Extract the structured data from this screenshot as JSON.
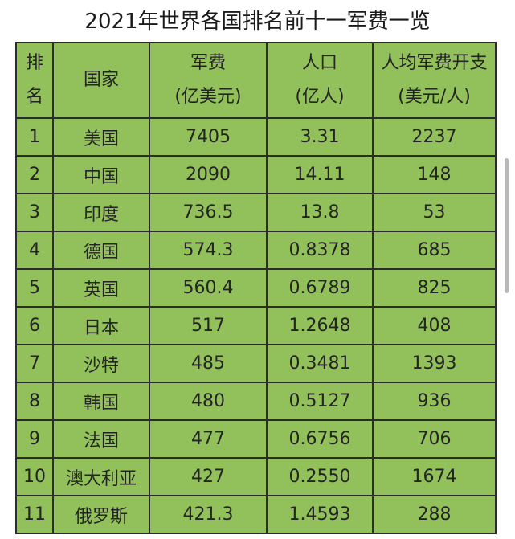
{
  "title": "2021年世界各国排名前十一军费一览",
  "colors": {
    "table_bg": "#92c05a",
    "border": "#2c2c2c"
  },
  "headers": {
    "rank_line1": "排",
    "rank_line2": "名",
    "country": "国家",
    "military_line1": "军费",
    "military_line2": "(亿美元)",
    "population_line1": "人口",
    "population_line2": "(亿人)",
    "per_capita_line1": "人均军费开支",
    "per_capita_line2": "(美元/人)"
  },
  "rows": [
    {
      "rank": "1",
      "country": "美国",
      "military": "7405",
      "population": "3.31",
      "per_capita": "2237"
    },
    {
      "rank": "2",
      "country": "中国",
      "military": "2090",
      "population": "14.11",
      "per_capita": "148"
    },
    {
      "rank": "3",
      "country": "印度",
      "military": "736.5",
      "population": "13.8",
      "per_capita": "53"
    },
    {
      "rank": "4",
      "country": "德国",
      "military": "574.3",
      "population": "0.8378",
      "per_capita": "685"
    },
    {
      "rank": "5",
      "country": "英国",
      "military": "560.4",
      "population": "0.6789",
      "per_capita": "825"
    },
    {
      "rank": "6",
      "country": "日本",
      "military": "517",
      "population": "1.2648",
      "per_capita": "408"
    },
    {
      "rank": "7",
      "country": "沙特",
      "military": "485",
      "population": "0.3481",
      "per_capita": "1393"
    },
    {
      "rank": "8",
      "country": "韩国",
      "military": "480",
      "population": "0.5127",
      "per_capita": "936"
    },
    {
      "rank": "9",
      "country": "法国",
      "military": "477",
      "population": "0.6756",
      "per_capita": "706"
    },
    {
      "rank": "10",
      "country": "澳大利亚",
      "military": "427",
      "population": "0.2550",
      "per_capita": "1674"
    },
    {
      "rank": "11",
      "country": "俄罗斯",
      "military": "421.3",
      "population": "1.4593",
      "per_capita": "288"
    }
  ]
}
